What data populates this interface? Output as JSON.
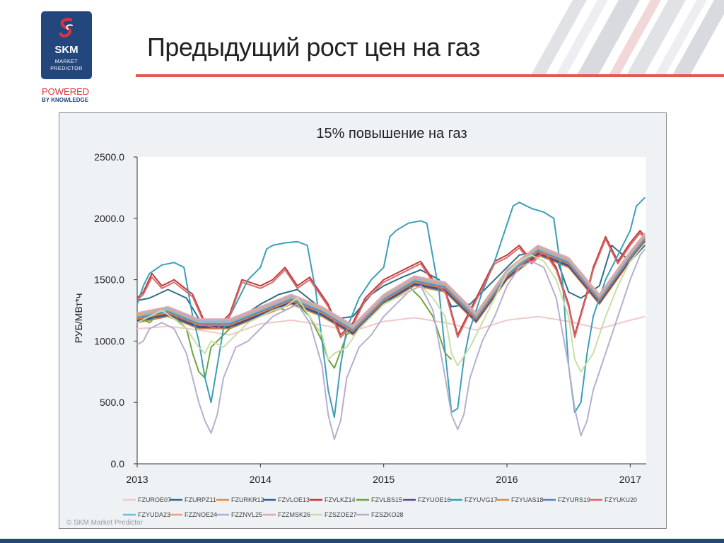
{
  "brand": {
    "name": "SKM",
    "line1": "MARKET",
    "line2": "PREDICTOR",
    "powered": "POWERED",
    "by_knowledge": "BY KNOWLEDGE",
    "primary_color": "#23477d",
    "accent_color": "#e2333b"
  },
  "slide": {
    "title": "Предыдущий рост цен на газ"
  },
  "copyright": "© SKM Market Predictor",
  "chart_data": {
    "type": "line",
    "title": "15% повышение на газ",
    "xlabel": "",
    "ylabel": "РУБ/МВт*ч",
    "xlim": [
      2013.0,
      2017.13
    ],
    "ylim": [
      0,
      2500
    ],
    "yticks": [
      0,
      500,
      1000,
      1500,
      2000,
      2500
    ],
    "ytick_labels": [
      "0.0",
      "500.0",
      "1000.0",
      "1500.0",
      "2000.0",
      "2500.0"
    ],
    "xticks": [
      2013,
      2014,
      2015,
      2016,
      2017
    ],
    "xtick_labels": [
      "2013",
      "2014",
      "2015",
      "2016",
      "2017"
    ],
    "grid": false,
    "legend_position": "bottom",
    "series": [
      {
        "name": "FZUROE07",
        "color": "#f2c8c8",
        "x": [
          2013.0,
          2013.25,
          2013.5,
          2013.75,
          2014.0,
          2014.25,
          2014.5,
          2014.75,
          2015.0,
          2015.25,
          2015.5,
          2015.75,
          2016.0,
          2016.25,
          2016.5,
          2016.75,
          2017.0,
          2017.12
        ],
        "y": [
          1100,
          1120,
          1090,
          1050,
          1140,
          1170,
          1130,
          1080,
          1160,
          1190,
          1150,
          1090,
          1170,
          1200,
          1160,
          1100,
          1170,
          1200
        ]
      },
      {
        "name": "FZURPZ11",
        "color": "#2c6f86",
        "x": [
          2013.0,
          2013.1,
          2013.25,
          2013.4,
          2013.55,
          2013.7,
          2013.85,
          2014.0,
          2014.15,
          2014.3,
          2014.45,
          2014.6,
          2014.75,
          2014.9,
          2015.0,
          2015.15,
          2015.3,
          2015.45,
          2015.55,
          2015.7,
          2015.85,
          2016.0,
          2016.1,
          2016.2,
          2016.3,
          2016.4,
          2016.5,
          2016.6,
          2016.75,
          2016.85,
          2017.0,
          2017.12
        ],
        "y": [
          1330,
          1350,
          1420,
          1350,
          1100,
          1120,
          1200,
          1300,
          1380,
          1420,
          1300,
          1180,
          1200,
          1380,
          1450,
          1520,
          1580,
          1500,
          1280,
          1300,
          1450,
          1600,
          1700,
          1720,
          1700,
          1680,
          1400,
          1350,
          1450,
          1780,
          1650,
          1780
        ]
      },
      {
        "name": "FZURKR12",
        "color": "#e58a3c",
        "x": [
          2013.0,
          2013.25,
          2013.5,
          2013.75,
          2014.0,
          2014.25,
          2014.5,
          2014.75,
          2015.0,
          2015.25,
          2015.5,
          2015.75,
          2016.0,
          2016.25,
          2016.5,
          2016.75,
          2017.0,
          2017.12
        ],
        "y": [
          1150,
          1200,
          1100,
          1100,
          1200,
          1300,
          1200,
          1050,
          1300,
          1450,
          1400,
          1150,
          1500,
          1700,
          1600,
          1300,
          1650,
          1800
        ]
      },
      {
        "name": "FZVLOE13",
        "color": "#2f5f9c",
        "x": [
          2013.0,
          2013.25,
          2013.5,
          2013.75,
          2014.0,
          2014.25,
          2014.5,
          2014.75,
          2015.0,
          2015.25,
          2015.5,
          2015.75,
          2016.0,
          2016.25,
          2016.5,
          2016.75,
          2017.0,
          2017.12
        ],
        "y": [
          1160,
          1210,
          1110,
          1110,
          1210,
          1310,
          1210,
          1060,
          1310,
          1460,
          1410,
          1160,
          1510,
          1710,
          1610,
          1310,
          1660,
          1810
        ]
      },
      {
        "name": "FZVLKZ14",
        "color": "#c0393b",
        "x": [
          2013.0,
          2013.05,
          2013.12,
          2013.2,
          2013.3,
          2013.45,
          2013.55,
          2013.65,
          2013.75,
          2013.85,
          2014.0,
          2014.1,
          2014.2,
          2014.3,
          2014.4,
          2014.55,
          2014.65,
          2014.75,
          2014.85,
          2015.0,
          2015.1,
          2015.2,
          2015.3,
          2015.4,
          2015.5,
          2015.6,
          2015.7,
          2015.8,
          2015.9,
          2016.0,
          2016.1,
          2016.2,
          2016.3,
          2016.4,
          2016.5,
          2016.55,
          2016.65,
          2016.7,
          2016.8,
          2016.9,
          2017.0,
          2017.08,
          2017.12
        ],
        "y": [
          1350,
          1400,
          1550,
          1450,
          1500,
          1380,
          1150,
          1120,
          1220,
          1500,
          1450,
          1500,
          1600,
          1450,
          1520,
          1300,
          1050,
          1150,
          1350,
          1500,
          1550,
          1600,
          1650,
          1500,
          1420,
          1050,
          1250,
          1450,
          1650,
          1700,
          1780,
          1650,
          1750,
          1600,
          1300,
          1050,
          1400,
          1600,
          1850,
          1650,
          1800,
          1900,
          1850
        ]
      },
      {
        "name": "FZVLBS15",
        "color": "#6ea43e",
        "x": [
          2013.0,
          2013.1,
          2013.2,
          2013.3,
          2013.4,
          2013.45,
          2013.5,
          2013.55,
          2013.6,
          2013.7,
          2013.8,
          2013.9,
          2014.0,
          2014.1,
          2014.2,
          2014.3,
          2014.4,
          2014.5,
          2014.55,
          2014.6,
          2014.7,
          2014.8,
          2014.9,
          2015.0,
          2015.1,
          2015.2,
          2015.3,
          2015.4,
          2015.45,
          2015.5,
          2015.55
        ],
        "y": [
          1200,
          1150,
          1250,
          1200,
          1100,
          900,
          750,
          700,
          950,
          1050,
          1150,
          1200,
          1250,
          1300,
          1250,
          1300,
          1200,
          1000,
          850,
          780,
          1050,
          1150,
          1250,
          1300,
          1400,
          1450,
          1350,
          1200,
          1050,
          900,
          850
        ]
      },
      {
        "name": "FZYUOE16",
        "color": "#5a4a8c",
        "x": [
          2013.0,
          2013.25,
          2013.5,
          2013.75,
          2014.0,
          2014.25,
          2014.5,
          2014.75,
          2015.0,
          2015.25,
          2015.5,
          2015.75,
          2016.0,
          2016.25,
          2016.5,
          2016.75,
          2017.0,
          2017.12
        ],
        "y": [
          1170,
          1220,
          1120,
          1120,
          1220,
          1320,
          1220,
          1070,
          1320,
          1470,
          1420,
          1170,
          1520,
          1720,
          1620,
          1320,
          1670,
          1820
        ]
      },
      {
        "name": "FZYUVG17",
        "color": "#3a9fb8",
        "x": [
          2013.0,
          2013.05,
          2013.1,
          2013.2,
          2013.3,
          2013.38,
          2013.45,
          2013.5,
          2013.55,
          2013.6,
          2013.65,
          2013.7,
          2013.8,
          2013.9,
          2014.0,
          2014.05,
          2014.1,
          2014.2,
          2014.3,
          2014.38,
          2014.45,
          2014.5,
          2014.55,
          2014.6,
          2014.65,
          2014.7,
          2014.8,
          2014.9,
          2015.0,
          2015.05,
          2015.1,
          2015.2,
          2015.3,
          2015.35,
          2015.45,
          2015.5,
          2015.55,
          2015.6,
          2015.65,
          2015.7,
          2015.8,
          2015.9,
          2016.0,
          2016.05,
          2016.1,
          2016.2,
          2016.3,
          2016.38,
          2016.45,
          2016.5,
          2016.55,
          2016.6,
          2016.65,
          2016.7,
          2016.8,
          2016.9,
          2017.0,
          2017.05,
          2017.12
        ],
        "y": [
          1300,
          1450,
          1550,
          1620,
          1640,
          1600,
          1200,
          1000,
          700,
          500,
          800,
          1100,
          1300,
          1500,
          1600,
          1750,
          1780,
          1800,
          1810,
          1780,
          1400,
          1000,
          600,
          380,
          800,
          1100,
          1350,
          1500,
          1600,
          1850,
          1900,
          1960,
          1980,
          1960,
          1400,
          900,
          420,
          450,
          850,
          1100,
          1400,
          1650,
          1950,
          2100,
          2130,
          2080,
          2050,
          2000,
          1500,
          800,
          420,
          500,
          900,
          1200,
          1500,
          1700,
          1900,
          2100,
          2170
        ]
      },
      {
        "name": "FZYUAS18",
        "color": "#e8893a",
        "x": [
          2013.0,
          2013.25,
          2013.5,
          2013.75,
          2014.0,
          2014.25,
          2014.5,
          2014.75,
          2015.0,
          2015.25,
          2015.5,
          2015.75,
          2016.0,
          2016.25,
          2016.5,
          2016.75,
          2017.0,
          2017.12
        ],
        "y": [
          1180,
          1230,
          1130,
          1130,
          1230,
          1330,
          1230,
          1080,
          1330,
          1480,
          1430,
          1180,
          1530,
          1730,
          1630,
          1330,
          1680,
          1830
        ]
      },
      {
        "name": "FZYURS19",
        "color": "#5b7fbf",
        "x": [
          2013.0,
          2013.25,
          2013.5,
          2013.75,
          2014.0,
          2014.25,
          2014.5,
          2014.75,
          2015.0,
          2015.25,
          2015.5,
          2015.75,
          2016.0,
          2016.25,
          2016.5,
          2016.75,
          2017.0,
          2017.12
        ],
        "y": [
          1190,
          1240,
          1140,
          1140,
          1240,
          1340,
          1240,
          1090,
          1340,
          1490,
          1440,
          1190,
          1540,
          1740,
          1640,
          1340,
          1690,
          1840
        ]
      },
      {
        "name": "FZYUKU20",
        "color": "#d86a6a",
        "x": [
          2013.0,
          2013.05,
          2013.12,
          2013.2,
          2013.3,
          2013.45,
          2013.55,
          2013.65,
          2013.75,
          2013.85,
          2014.0,
          2014.1,
          2014.2,
          2014.3,
          2014.4,
          2014.55,
          2014.65,
          2014.75,
          2014.85,
          2015.0,
          2015.1,
          2015.2,
          2015.3,
          2015.4,
          2015.5,
          2015.6,
          2015.7,
          2015.8,
          2015.9,
          2016.0,
          2016.1,
          2016.2,
          2016.3,
          2016.4,
          2016.5,
          2016.55,
          2016.65,
          2016.7,
          2016.8,
          2016.9,
          2017.0,
          2017.08,
          2017.12
        ],
        "y": [
          1330,
          1380,
          1520,
          1430,
          1480,
          1360,
          1130,
          1100,
          1200,
          1480,
          1430,
          1480,
          1580,
          1430,
          1500,
          1280,
          1030,
          1130,
          1330,
          1480,
          1530,
          1580,
          1630,
          1480,
          1400,
          1030,
          1230,
          1430,
          1630,
          1680,
          1760,
          1630,
          1730,
          1580,
          1280,
          1030,
          1380,
          1580,
          1830,
          1630,
          1780,
          1880,
          1830
        ]
      },
      {
        "name": "FZYUDA23",
        "color": "#6cc0d8",
        "x": [
          2013.0,
          2013.25,
          2013.5,
          2013.75,
          2014.0,
          2014.25,
          2014.5,
          2014.75,
          2015.0,
          2015.25,
          2015.5,
          2015.75,
          2016.0,
          2016.25,
          2016.5,
          2016.75,
          2017.0,
          2017.12
        ],
        "y": [
          1200,
          1250,
          1150,
          1150,
          1250,
          1350,
          1250,
          1100,
          1350,
          1500,
          1450,
          1200,
          1550,
          1750,
          1650,
          1350,
          1700,
          1850
        ]
      },
      {
        "name": "FZZNOE24",
        "color": "#f0a070",
        "x": [
          2013.0,
          2013.25,
          2013.5,
          2013.75,
          2014.0,
          2014.25,
          2014.5,
          2014.75,
          2015.0,
          2015.25,
          2015.5,
          2015.75,
          2016.0,
          2016.25,
          2016.5,
          2016.75,
          2017.0,
          2017.12
        ],
        "y": [
          1210,
          1260,
          1160,
          1160,
          1260,
          1360,
          1260,
          1110,
          1360,
          1510,
          1460,
          1210,
          1560,
          1760,
          1660,
          1360,
          1710,
          1860
        ]
      },
      {
        "name": "FZZNVL25",
        "color": "#a9b4d6",
        "x": [
          2013.0,
          2013.25,
          2013.5,
          2013.75,
          2014.0,
          2014.25,
          2014.5,
          2014.75,
          2015.0,
          2015.25,
          2015.5,
          2015.75,
          2016.0,
          2016.25,
          2016.5,
          2016.75,
          2017.0,
          2017.12
        ],
        "y": [
          1220,
          1270,
          1170,
          1170,
          1270,
          1370,
          1270,
          1120,
          1370,
          1520,
          1470,
          1220,
          1570,
          1770,
          1670,
          1370,
          1720,
          1870
        ]
      },
      {
        "name": "FZZMSK26",
        "color": "#e4a8a8",
        "x": [
          2013.0,
          2013.25,
          2013.5,
          2013.75,
          2014.0,
          2014.25,
          2014.5,
          2014.75,
          2015.0,
          2015.25,
          2015.5,
          2015.75,
          2016.0,
          2016.25,
          2016.5,
          2016.75,
          2017.0,
          2017.12
        ],
        "y": [
          1230,
          1280,
          1180,
          1180,
          1280,
          1380,
          1280,
          1130,
          1380,
          1530,
          1480,
          1230,
          1580,
          1780,
          1680,
          1380,
          1730,
          1880
        ]
      },
      {
        "name": "FZSZOE27",
        "color": "#c8dfa8",
        "x": [
          2013.0,
          2013.1,
          2013.2,
          2013.3,
          2013.4,
          2013.5,
          2013.55,
          2013.6,
          2013.7,
          2013.8,
          2013.9,
          2014.0,
          2014.1,
          2014.2,
          2014.3,
          2014.4,
          2014.5,
          2014.55,
          2014.6,
          2014.7,
          2014.8,
          2014.9,
          2015.0,
          2015.1,
          2015.2,
          2015.3,
          2015.4,
          2015.5,
          2015.55,
          2015.6,
          2015.7,
          2015.8,
          2015.9,
          2016.0,
          2016.1,
          2016.2,
          2016.3,
          2016.4,
          2016.5,
          2016.55,
          2016.6,
          2016.7,
          2016.8,
          2016.9,
          2017.0,
          2017.12
        ],
        "y": [
          1150,
          1200,
          1250,
          1180,
          1100,
          950,
          900,
          1000,
          950,
          1050,
          1150,
          1200,
          1250,
          1280,
          1350,
          1200,
          1050,
          850,
          900,
          950,
          1100,
          1200,
          1300,
          1350,
          1400,
          1450,
          1350,
          1200,
          900,
          800,
          950,
          1150,
          1350,
          1550,
          1650,
          1700,
          1650,
          1500,
          1200,
          850,
          750,
          900,
          1200,
          1450,
          1650,
          1800
        ]
      },
      {
        "name": "FZSZKO28",
        "color": "#b6aecf",
        "x": [
          2013.0,
          2013.05,
          2013.1,
          2013.2,
          2013.3,
          2013.4,
          2013.5,
          2013.55,
          2013.6,
          2013.65,
          2013.7,
          2013.8,
          2013.9,
          2014.0,
          2014.1,
          2014.2,
          2014.3,
          2014.4,
          2014.5,
          2014.55,
          2014.6,
          2014.65,
          2014.7,
          2014.8,
          2014.9,
          2015.0,
          2015.1,
          2015.2,
          2015.3,
          2015.4,
          2015.5,
          2015.55,
          2015.6,
          2015.65,
          2015.7,
          2015.8,
          2015.9,
          2016.0,
          2016.1,
          2016.2,
          2016.3,
          2016.4,
          2016.5,
          2016.55,
          2016.6,
          2016.65,
          2016.7,
          2016.8,
          2016.9,
          2017.0,
          2017.08,
          2017.12
        ],
        "y": [
          970,
          1000,
          1100,
          1150,
          1100,
          900,
          500,
          350,
          250,
          400,
          700,
          950,
          1000,
          1100,
          1200,
          1250,
          1300,
          1150,
          800,
          400,
          200,
          350,
          700,
          950,
          1050,
          1200,
          1300,
          1400,
          1450,
          1250,
          700,
          400,
          280,
          400,
          700,
          1000,
          1200,
          1450,
          1600,
          1650,
          1600,
          1350,
          800,
          450,
          230,
          350,
          600,
          900,
          1200,
          1500,
          1700,
          1750
        ]
      }
    ]
  }
}
